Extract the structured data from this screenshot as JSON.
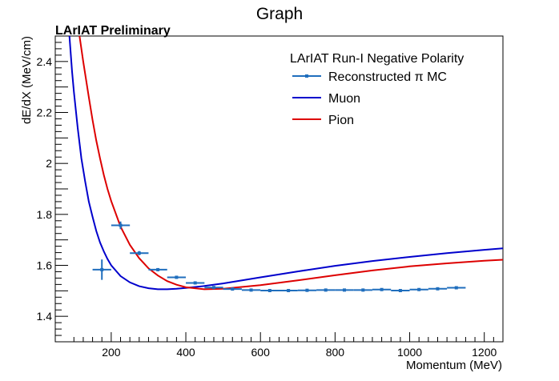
{
  "chart_data": {
    "type": "line",
    "title": "Graph",
    "subtitle": "LArIAT Preliminary",
    "xlabel": "Momentum (MeV)",
    "ylabel": "dE/dX (MeV/cm)",
    "xlim": [
      50,
      1250
    ],
    "ylim": [
      1.3,
      2.5
    ],
    "x_ticks": [
      200,
      400,
      600,
      800,
      1000,
      1200
    ],
    "x_tick_labels": [
      "200",
      "400",
      "600",
      "800",
      "1000",
      "1200"
    ],
    "y_ticks": [
      1.4,
      1.6,
      1.8,
      2.0,
      2.2,
      2.4
    ],
    "y_tick_labels": [
      "1.4",
      "1.6",
      "1.8",
      "2",
      "2.2",
      "2.4"
    ],
    "grid": false,
    "legend": {
      "title": "LArIAT Run-I Negative Polarity",
      "placement": "top-right",
      "entries": [
        "Reconstructed π MC",
        "Muon",
        "Pion"
      ]
    },
    "series": [
      {
        "name": "Reconstructed π MC",
        "kind": "errorbar",
        "color": "#1f6ebd",
        "points": [
          {
            "x": 175,
            "y": 1.583,
            "xerr": 25,
            "yerr": 0.04
          },
          {
            "x": 225,
            "y": 1.757,
            "xerr": 25,
            "yerr": 0.015
          },
          {
            "x": 275,
            "y": 1.648,
            "xerr": 25,
            "yerr": 0.008
          },
          {
            "x": 325,
            "y": 1.583,
            "xerr": 25,
            "yerr": 0.006
          },
          {
            "x": 375,
            "y": 1.553,
            "xerr": 25,
            "yerr": 0.005
          },
          {
            "x": 425,
            "y": 1.531,
            "xerr": 25,
            "yerr": 0.004
          },
          {
            "x": 475,
            "y": 1.513,
            "xerr": 25,
            "yerr": 0.004
          },
          {
            "x": 525,
            "y": 1.507,
            "xerr": 25,
            "yerr": 0.003
          },
          {
            "x": 575,
            "y": 1.503,
            "xerr": 25,
            "yerr": 0.003
          },
          {
            "x": 625,
            "y": 1.501,
            "xerr": 25,
            "yerr": 0.003
          },
          {
            "x": 675,
            "y": 1.501,
            "xerr": 25,
            "yerr": 0.003
          },
          {
            "x": 725,
            "y": 1.502,
            "xerr": 25,
            "yerr": 0.003
          },
          {
            "x": 775,
            "y": 1.503,
            "xerr": 25,
            "yerr": 0.003
          },
          {
            "x": 825,
            "y": 1.503,
            "xerr": 25,
            "yerr": 0.003
          },
          {
            "x": 875,
            "y": 1.503,
            "xerr": 25,
            "yerr": 0.003
          },
          {
            "x": 925,
            "y": 1.505,
            "xerr": 25,
            "yerr": 0.003
          },
          {
            "x": 975,
            "y": 1.501,
            "xerr": 25,
            "yerr": 0.003
          },
          {
            "x": 1025,
            "y": 1.505,
            "xerr": 25,
            "yerr": 0.003
          },
          {
            "x": 1075,
            "y": 1.508,
            "xerr": 25,
            "yerr": 0.003
          },
          {
            "x": 1125,
            "y": 1.512,
            "xerr": 25,
            "yerr": 0.004
          }
        ]
      },
      {
        "name": "Muon",
        "kind": "curve",
        "color": "#0000cc",
        "x": [
          88,
          95,
          100,
          110,
          120,
          130,
          140,
          150,
          160,
          170,
          180,
          190,
          200,
          225,
          250,
          275,
          300,
          325,
          350,
          375,
          400,
          450,
          500,
          600,
          700,
          800,
          900,
          1000,
          1100,
          1200,
          1250
        ],
        "y": [
          2.5,
          2.36,
          2.28,
          2.14,
          2.02,
          1.93,
          1.85,
          1.79,
          1.735,
          1.69,
          1.655,
          1.625,
          1.6,
          1.558,
          1.533,
          1.518,
          1.51,
          1.506,
          1.506,
          1.508,
          1.511,
          1.519,
          1.529,
          1.553,
          1.576,
          1.598,
          1.617,
          1.633,
          1.648,
          1.661,
          1.667
        ]
      },
      {
        "name": "Pion",
        "kind": "curve",
        "color": "#dd0000",
        "x": [
          115,
          125,
          140,
          150,
          160,
          170,
          180,
          190,
          200,
          225,
          250,
          275,
          300,
          325,
          350,
          375,
          400,
          450,
          500,
          600,
          700,
          800,
          900,
          1000,
          1100,
          1200,
          1250
        ],
        "y": [
          2.5,
          2.4,
          2.26,
          2.17,
          2.09,
          2.02,
          1.955,
          1.9,
          1.852,
          1.752,
          1.68,
          1.628,
          1.588,
          1.56,
          1.538,
          1.524,
          1.514,
          1.506,
          1.508,
          1.522,
          1.541,
          1.561,
          1.58,
          1.596,
          1.608,
          1.618,
          1.622
        ]
      }
    ]
  }
}
